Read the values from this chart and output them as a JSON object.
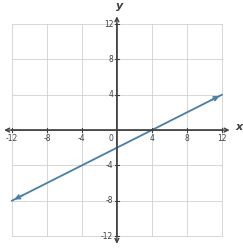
{
  "xlim": [
    -12,
    12
  ],
  "ylim": [
    -12,
    12
  ],
  "xticks": [
    -12,
    -8,
    -4,
    4,
    8,
    12
  ],
  "yticks": [
    -12,
    -8,
    -4,
    4,
    8,
    12
  ],
  "xlabel": "x",
  "ylabel": "y",
  "line_x": [
    -12,
    12
  ],
  "line_y": [
    -8,
    4
  ],
  "line_color": "#4a7fa5",
  "line_width": 1.3,
  "grid_color": "#c8c8c8",
  "grid_lw": 0.5,
  "axis_color": "#404040",
  "axis_lw": 1.0,
  "tick_label_fontsize": 5.5,
  "axis_label_fontsize": 8,
  "arrow_mutation_scale": 7,
  "background_color": "#ffffff"
}
